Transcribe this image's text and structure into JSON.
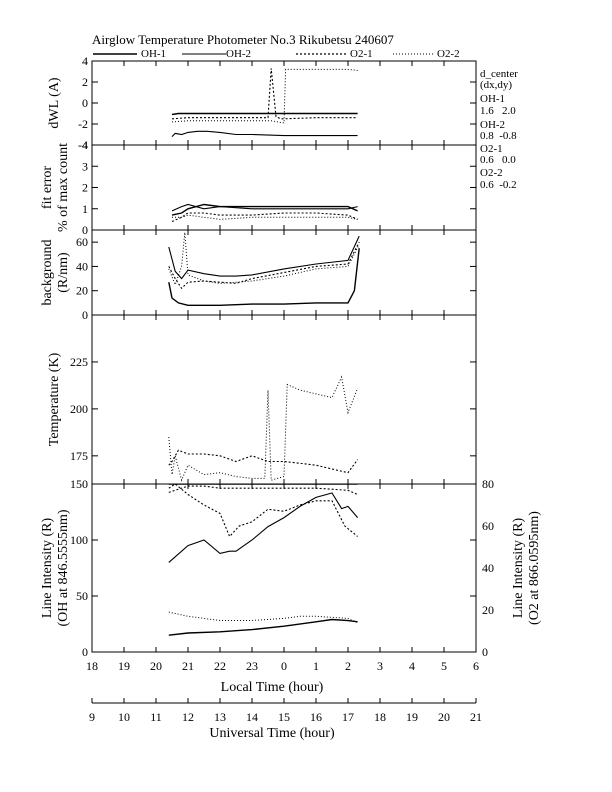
{
  "title": "Airglow Temperature Photometer No.3  Rikubetsu    240607",
  "legend": [
    {
      "label": "OH-1",
      "dash": ""
    },
    {
      "label": "OH-2",
      "dash": ""
    },
    {
      "label": "O2-1",
      "dash": "2,2"
    },
    {
      "label": "O2-2",
      "dash": "1,2"
    }
  ],
  "d_center": {
    "heading": "d_center",
    "subheading": "(dx,dy)",
    "entries": [
      {
        "label": "OH-1",
        "value": "1.6   2.0"
      },
      {
        "label": "OH-2",
        "value": "0.8  -0.8"
      },
      {
        "label": "O2-1",
        "value": "0.6   0.0"
      },
      {
        "label": "O2-2",
        "value": "0.6  -0.2"
      }
    ]
  },
  "chart_data": [
    {
      "type": "line",
      "ylabel": "dWL (A)",
      "ylim": [
        -4,
        4
      ],
      "yticks": [
        "4",
        "2",
        "0",
        "-2",
        "-4"
      ],
      "xlim_local_hour": [
        18,
        30
      ],
      "series": [
        {
          "name": "OH-1",
          "x": [
            20.5,
            20.7,
            21.0,
            21.5,
            22.0,
            23.0,
            24.0,
            25.0,
            26.0,
            26.3
          ],
          "y": [
            -1.1,
            -1.0,
            -1.0,
            -1.0,
            -1.0,
            -1.0,
            -1.0,
            -1.0,
            -1.0,
            -1.0
          ]
        },
        {
          "name": "OH-2",
          "x": [
            20.5,
            20.6,
            20.8,
            21.0,
            21.3,
            21.6,
            22.0,
            22.5,
            23.0,
            24.0,
            25.0,
            26.0,
            26.3
          ],
          "y": [
            -3.2,
            -2.9,
            -3.0,
            -2.8,
            -2.7,
            -2.7,
            -2.8,
            -3.0,
            -3.0,
            -3.1,
            -3.1,
            -3.1,
            -3.1
          ]
        },
        {
          "name": "O2-1",
          "x": [
            20.5,
            21.0,
            21.5,
            22.0,
            23.0,
            23.5,
            23.6,
            23.75,
            23.9,
            24.0,
            25.0,
            26.0,
            26.3
          ],
          "y": [
            -1.5,
            -1.4,
            -1.4,
            -1.4,
            -1.4,
            -1.4,
            3.3,
            -1.3,
            -1.5,
            -1.5,
            -1.4,
            -1.4,
            -1.4
          ]
        },
        {
          "name": "O2-2",
          "x": [
            20.5,
            21.0,
            22.0,
            23.0,
            23.6,
            24.0,
            24.05,
            25.0,
            26.0,
            26.3
          ],
          "y": [
            -1.8,
            -1.7,
            -1.7,
            -1.7,
            -1.7,
            -1.9,
            3.2,
            3.2,
            3.2,
            3.1
          ]
        }
      ]
    },
    {
      "type": "line",
      "ylabel": "fit error",
      "ylabel2": "% of max count",
      "ylim": [
        0,
        4
      ],
      "yticks": [
        "4",
        "3",
        "2",
        "1",
        "0"
      ],
      "series": [
        {
          "name": "OH-1",
          "x": [
            20.5,
            20.8,
            21.0,
            21.5,
            22.0,
            23.0,
            24.0,
            25.0,
            26.0,
            26.3
          ],
          "y": [
            0.7,
            0.8,
            1.0,
            1.2,
            1.1,
            1.1,
            1.1,
            1.1,
            1.1,
            0.9
          ]
        },
        {
          "name": "OH-2",
          "x": [
            20.5,
            20.8,
            21.0,
            21.5,
            22.0,
            23.0,
            24.0,
            25.0,
            26.0,
            26.3
          ],
          "y": [
            0.9,
            1.1,
            1.2,
            1.0,
            1.1,
            1.0,
            1.0,
            1.0,
            1.0,
            1.1
          ]
        },
        {
          "name": "O2-1",
          "x": [
            20.5,
            20.8,
            21.0,
            21.5,
            22.0,
            23.0,
            24.0,
            25.0,
            26.0,
            26.3
          ],
          "y": [
            0.4,
            0.6,
            0.8,
            0.8,
            0.7,
            0.7,
            0.8,
            0.8,
            0.7,
            0.5
          ]
        },
        {
          "name": "O2-2",
          "x": [
            20.5,
            20.8,
            21.0,
            21.5,
            22.0,
            23.0,
            24.0,
            25.0,
            26.0,
            26.3
          ],
          "y": [
            0.6,
            0.6,
            0.7,
            0.6,
            0.5,
            0.6,
            0.6,
            0.6,
            0.6,
            0.5
          ]
        }
      ]
    },
    {
      "type": "line",
      "ylabel": "background",
      "ylabel2": "(R/nm)",
      "ylim": [
        0,
        70
      ],
      "yticks": [
        "60",
        "40",
        "20",
        "0"
      ],
      "series": [
        {
          "name": "OH-1",
          "x": [
            20.4,
            20.5,
            20.7,
            21.0,
            21.5,
            22.0,
            23.0,
            24.0,
            25.0,
            26.0,
            26.2,
            26.35
          ],
          "y": [
            27,
            14,
            10,
            8,
            8,
            8,
            9,
            9,
            10,
            10,
            20,
            55
          ]
        },
        {
          "name": "OH-2",
          "x": [
            20.4,
            20.6,
            20.8,
            21.0,
            21.5,
            22.0,
            22.5,
            23.0,
            24.0,
            25.0,
            26.0,
            26.35
          ],
          "y": [
            56,
            36,
            30,
            37,
            34,
            32,
            32,
            33,
            38,
            42,
            45,
            65
          ]
        },
        {
          "name": "O2-1",
          "x": [
            20.4,
            20.6,
            20.8,
            21.0,
            21.5,
            22.0,
            22.5,
            23.0,
            24.0,
            25.0,
            26.0,
            26.35
          ],
          "y": [
            40,
            30,
            22,
            27,
            28,
            27,
            26,
            30,
            35,
            40,
            42,
            60
          ]
        },
        {
          "name": "O2-2",
          "x": [
            20.4,
            20.6,
            20.8,
            20.9,
            21.0,
            21.5,
            22.0,
            23.0,
            24.0,
            25.0,
            26.0,
            26.35
          ],
          "y": [
            38,
            25,
            40,
            68,
            33,
            28,
            26,
            28,
            32,
            38,
            40,
            58
          ]
        }
      ]
    },
    {
      "type": "line",
      "ylabel": "Temperature (K)",
      "ylim": [
        160,
        250
      ],
      "yticks": [
        "225",
        "200",
        "175"
      ],
      "series": [
        {
          "name": "O2-1",
          "x": [
            20.4,
            20.5,
            20.7,
            21.0,
            21.5,
            22.0,
            22.5,
            23.0,
            23.5,
            24.0,
            24.5,
            25.0,
            25.5,
            26.0,
            26.3
          ],
          "y": [
            170,
            172,
            178,
            176,
            176,
            175,
            172,
            175,
            172,
            172,
            171,
            170,
            168,
            166,
            173
          ]
        },
        {
          "name": "O2-2",
          "x": [
            20.4,
            20.5,
            20.6,
            20.8,
            21.0,
            21.5,
            22.0,
            22.5,
            23.0,
            23.4,
            23.5,
            23.6,
            24.0,
            24.1,
            24.5,
            25.0,
            25.5,
            25.8,
            26.0,
            26.3
          ],
          "y": [
            185,
            165,
            175,
            162,
            170,
            165,
            166,
            164,
            163,
            163,
            210,
            162,
            164,
            213,
            210,
            208,
            206,
            217,
            198,
            211
          ]
        }
      ]
    },
    {
      "type": "line",
      "ylabel": "Line Intensity (R)",
      "ylabel2": "(OH at 846.5555nm)",
      "ylabel_right": "Line Intensity (R)",
      "ylabel2_right": "(O2 at 866.0595nm)",
      "xlabel": "Local Time (hour)",
      "xlabel2": "Universal Time (hour)",
      "ylim": [
        0,
        150
      ],
      "yticks": [
        "150",
        "100",
        "50",
        "0"
      ],
      "ylim_right": [
        0,
        80
      ],
      "yticks_right": [
        "80",
        "60",
        "40",
        "20",
        "0"
      ],
      "xticks_local": [
        "18",
        "19",
        "20",
        "21",
        "22",
        "23",
        "0",
        "1",
        "2",
        "3",
        "4",
        "5",
        "6"
      ],
      "xticks_ut": [
        "9",
        "10",
        "11",
        "12",
        "13",
        "14",
        "15",
        "16",
        "17",
        "18",
        "19",
        "20",
        "21"
      ],
      "series": [
        {
          "name": "OH-1",
          "axis": "left",
          "x": [
            20.4,
            21.0,
            22.0,
            23.0,
            24.0,
            25.0,
            25.5,
            26.0,
            26.3
          ],
          "y": [
            15,
            17,
            18,
            20,
            23,
            27,
            29,
            28,
            27
          ]
        },
        {
          "name": "OH-2",
          "axis": "left",
          "x": [
            20.4,
            20.6,
            21.0,
            21.5,
            22.0,
            22.3,
            22.5,
            23.0,
            23.5,
            24.0,
            24.5,
            25.0,
            25.5,
            25.8,
            26.0,
            26.3
          ],
          "y": [
            80,
            85,
            95,
            100,
            88,
            90,
            90,
            100,
            112,
            120,
            130,
            138,
            142,
            128,
            130,
            120
          ]
        },
        {
          "name": "OH-2 steady",
          "axis": "left",
          "x": [
            20.4,
            26.3
          ],
          "y": [
            150,
            150
          ]
        },
        {
          "name": "O2-1",
          "axis": "right",
          "x": [
            20.4,
            20.6,
            21.0,
            21.5,
            22.0,
            22.3,
            22.6,
            23.0,
            23.5,
            24.0,
            24.5,
            25.0,
            25.5,
            25.9,
            26.3
          ],
          "y": [
            78,
            80,
            75,
            70,
            66,
            55,
            60,
            62,
            68,
            67,
            70,
            72,
            72,
            60,
            55
          ]
        },
        {
          "name": "O2-1 upper",
          "axis": "right",
          "x": [
            20.4,
            21.0,
            21.5,
            22.0,
            23.0,
            24.0,
            25.0,
            26.0,
            26.3
          ],
          "y": [
            76,
            79,
            79,
            78,
            78,
            78,
            78,
            77,
            75
          ]
        },
        {
          "name": "O2-2",
          "axis": "right",
          "x": [
            20.4,
            21.0,
            22.0,
            23.0,
            24.0,
            24.5,
            25.0,
            26.0,
            26.3
          ],
          "y": [
            19,
            17,
            15,
            15,
            16,
            17,
            17,
            16,
            14
          ]
        }
      ]
    }
  ]
}
